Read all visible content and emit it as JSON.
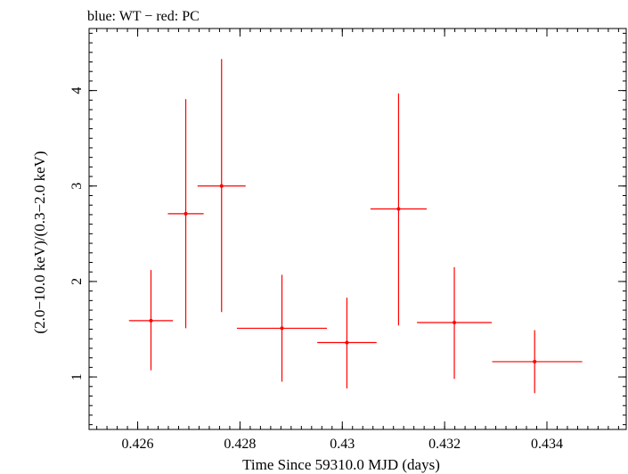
{
  "chart_data": {
    "type": "scatter",
    "title": "blue: WT − red: PC",
    "xlabel": "Time Since 59310.0 MJD (days)",
    "ylabel": "(2.0−10.0 keV)/(0.3−2.0 keV)",
    "xlim": [
      0.42505,
      0.43555
    ],
    "ylim": [
      0.45,
      4.65
    ],
    "x_ticks": [
      0.426,
      0.428,
      0.43,
      0.432,
      0.434
    ],
    "x_tick_labels": [
      "0.426",
      "0.428",
      "0.43",
      "0.432",
      "0.434"
    ],
    "y_ticks": [
      1,
      2,
      3,
      4
    ],
    "y_tick_labels": [
      "1",
      "2",
      "3",
      "4"
    ],
    "grid": false,
    "series": [
      {
        "name": "PC",
        "color": "#ff0000",
        "points": [
          {
            "x": 0.42626,
            "y": 1.59,
            "xerr_lo": 0.00043,
            "xerr_hi": 0.00043,
            "yerr_lo": 0.52,
            "yerr_hi": 0.53
          },
          {
            "x": 0.42694,
            "y": 2.71,
            "xerr_lo": 0.00035,
            "xerr_hi": 0.00035,
            "yerr_lo": 1.2,
            "yerr_hi": 1.2
          },
          {
            "x": 0.42764,
            "y": 3.0,
            "xerr_lo": 0.00047,
            "xerr_hi": 0.00047,
            "yerr_lo": 1.32,
            "yerr_hi": 1.33
          },
          {
            "x": 0.42882,
            "y": 1.51,
            "xerr_lo": 0.00088,
            "xerr_hi": 0.00088,
            "yerr_lo": 0.56,
            "yerr_hi": 0.56
          },
          {
            "x": 0.43009,
            "y": 1.36,
            "xerr_lo": 0.00058,
            "xerr_hi": 0.00058,
            "yerr_lo": 0.48,
            "yerr_hi": 0.47
          },
          {
            "x": 0.4311,
            "y": 2.76,
            "xerr_lo": 0.00055,
            "xerr_hi": 0.00055,
            "yerr_lo": 1.22,
            "yerr_hi": 1.21
          },
          {
            "x": 0.43219,
            "y": 1.57,
            "xerr_lo": 0.00073,
            "xerr_hi": 0.00073,
            "yerr_lo": 0.59,
            "yerr_hi": 0.58
          },
          {
            "x": 0.43376,
            "y": 1.16,
            "xerr_lo": 0.00083,
            "xerr_hi": 0.00093,
            "yerr_lo": 0.33,
            "yerr_hi": 0.33
          }
        ]
      }
    ]
  }
}
